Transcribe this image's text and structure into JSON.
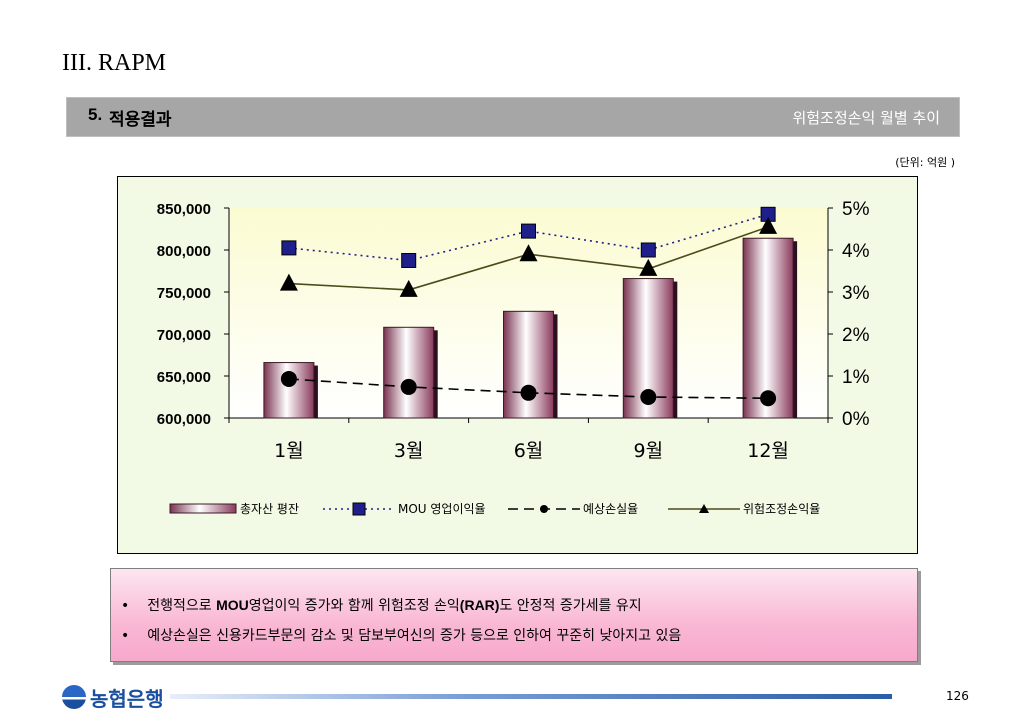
{
  "page": {
    "title": "III. RAPM",
    "section_number": "5.",
    "section_title": "적용결과",
    "section_right": "위험조정손익 월별 추이",
    "unit_note": "(단위: 억원 )",
    "page_number": "126",
    "logo_text": "농협은행"
  },
  "notes": [
    {
      "bullet": "•",
      "parts": [
        {
          "text": "전행적으로 ",
          "bold": false
        },
        {
          "text": "MOU",
          "bold": true
        },
        {
          "text": "영업이익 증가와 함께 위험조정 손익",
          "bold": false
        },
        {
          "text": "(RAR)",
          "bold": true
        },
        {
          "text": "도 안정적 증가세를 유지",
          "bold": false
        }
      ]
    },
    {
      "bullet": "•",
      "parts": [
        {
          "text": "예상손실은 신용카드부문의 감소 및 담보부여신의 증가 등으로 인하여 꾸준히 낮아지고 있음",
          "bold": false
        }
      ]
    }
  ],
  "chart_data": {
    "type": "bar",
    "categories": [
      "1월",
      "3월",
      "6월",
      "9월",
      "12월"
    ],
    "left_axis": {
      "ylim": [
        600000,
        850000
      ],
      "ticks": [
        "600,000",
        "650,000",
        "700,000",
        "750,000",
        "800,000",
        "850,000"
      ]
    },
    "right_axis": {
      "ylim": [
        0,
        5
      ],
      "ticks": [
        "0%",
        "1%",
        "2%",
        "3%",
        "4%",
        "5%"
      ]
    },
    "bars": {
      "name": "총자산 평잔",
      "values": [
        666000,
        708000,
        727000,
        766000,
        814000
      ],
      "axis": "left"
    },
    "series": [
      {
        "name": "MOU 영업이익율",
        "axis": "right",
        "style": "dotted-square",
        "color": "#1f1f8c",
        "values": [
          4.05,
          3.75,
          4.45,
          4.0,
          4.85
        ]
      },
      {
        "name": "예상손실율",
        "axis": "right",
        "style": "dashed-circle",
        "color": "#000000",
        "values": [
          0.93,
          0.74,
          0.6,
          0.5,
          0.47
        ]
      },
      {
        "name": "위험조정손익율",
        "axis": "right",
        "style": "solid-triangle",
        "color": "#4a4a1a",
        "values": [
          3.2,
          3.05,
          3.9,
          3.55,
          4.55
        ]
      }
    ],
    "legend": "bottom",
    "grid": false
  }
}
